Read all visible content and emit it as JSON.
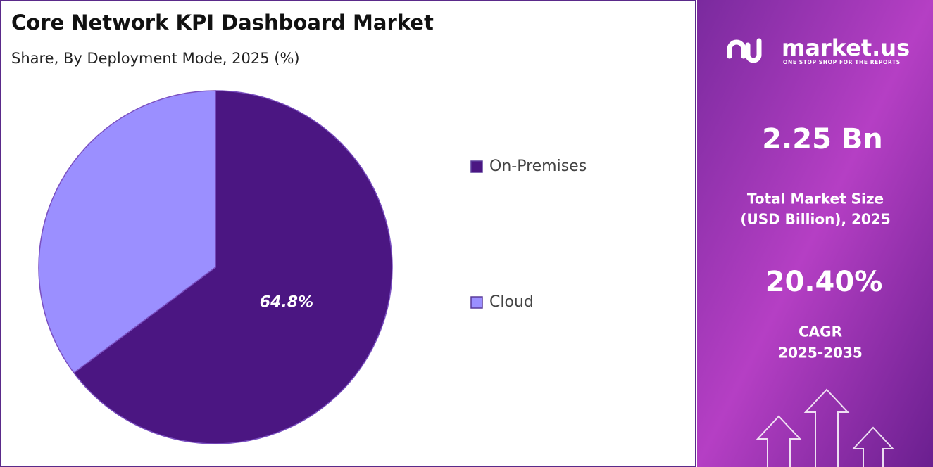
{
  "chart_data": {
    "type": "pie",
    "title": "Core Network KPI Dashboard Market",
    "subtitle": "Share, By Deployment Mode, 2025 (%)",
    "categories": [
      "On-Premises",
      "Cloud"
    ],
    "values": [
      64.8,
      35.2
    ],
    "value_labels": [
      "64.8%",
      null
    ],
    "colors": [
      "#4b1682",
      "#9b8fff"
    ]
  },
  "panel": {
    "logo": "market.us",
    "tagline": "ONE STOP SHOP FOR THE REPORTS",
    "market_size": "2.25 Bn",
    "market_size_label_1": "Total Market Size",
    "market_size_label_2": "(USD Billion), 2025",
    "cagr": "20.40%",
    "cagr_label_1": "CAGR",
    "cagr_label_2": "2025-2035"
  }
}
